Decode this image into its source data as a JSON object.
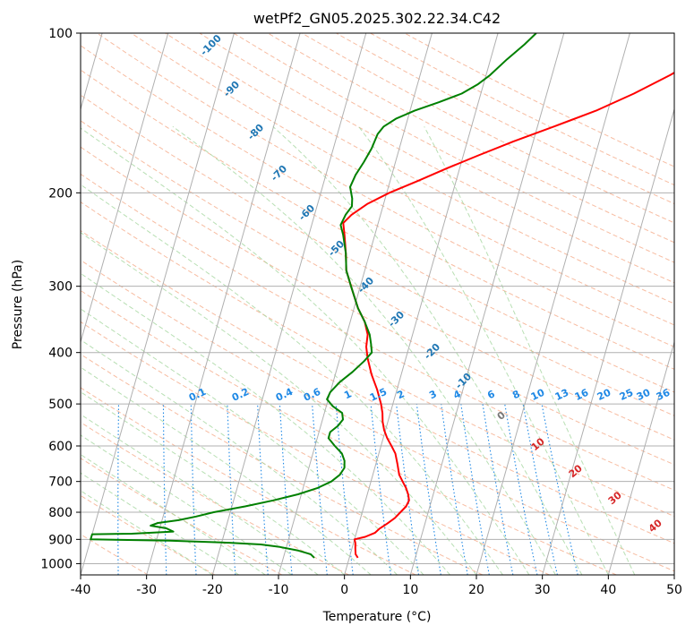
{
  "chart_data": {
    "type": "line",
    "title": "wetPf2_GN05.2025.302.22.34.C42",
    "xlabel": "Temperature (°C)",
    "ylabel": "Pressure (hPa)",
    "xlim": [
      -40,
      50
    ],
    "ylim": [
      1050,
      100
    ],
    "y_scale": "log",
    "grid": true,
    "x_ticks": [
      -40,
      -30,
      -20,
      -10,
      0,
      10,
      20,
      30,
      40,
      50
    ],
    "y_ticks": [
      100,
      200,
      300,
      400,
      500,
      600,
      700,
      800,
      900,
      1000
    ],
    "series": [
      {
        "color": "#ff0000",
        "points": [
          {
            "p": 975,
            "t": 1.3
          },
          {
            "p": 960,
            "t": 0.8
          },
          {
            "p": 935,
            "t": 0.5
          },
          {
            "p": 915,
            "t": 0.3
          },
          {
            "p": 900,
            "t": 0.0
          },
          {
            "p": 890,
            "t": 1.5
          },
          {
            "p": 875,
            "t": 2.8
          },
          {
            "p": 860,
            "t": 3.3
          },
          {
            "p": 840,
            "t": 4.3
          },
          {
            "p": 820,
            "t": 5.2
          },
          {
            "p": 800,
            "t": 5.8
          },
          {
            "p": 780,
            "t": 6.4
          },
          {
            "p": 760,
            "t": 6.6
          },
          {
            "p": 740,
            "t": 6.2
          },
          {
            "p": 720,
            "t": 5.6
          },
          {
            "p": 700,
            "t": 4.8
          },
          {
            "p": 680,
            "t": 4.0
          },
          {
            "p": 650,
            "t": 3.3
          },
          {
            "p": 620,
            "t": 2.5
          },
          {
            "p": 600,
            "t": 1.6
          },
          {
            "p": 580,
            "t": 0.6
          },
          {
            "p": 560,
            "t": -0.2
          },
          {
            "p": 540,
            "t": -0.8
          },
          {
            "p": 520,
            "t": -1.2
          },
          {
            "p": 500,
            "t": -1.8
          },
          {
            "p": 470,
            "t": -3.0
          },
          {
            "p": 440,
            "t": -4.5
          },
          {
            "p": 410,
            "t": -5.8
          },
          {
            "p": 390,
            "t": -6.5
          },
          {
            "p": 370,
            "t": -6.8
          },
          {
            "p": 350,
            "t": -7.8
          },
          {
            "p": 330,
            "t": -9.4
          },
          {
            "p": 300,
            "t": -11.4
          },
          {
            "p": 280,
            "t": -12.8
          },
          {
            "p": 260,
            "t": -13.6
          },
          {
            "p": 240,
            "t": -14.6
          },
          {
            "p": 228,
            "t": -15.3
          },
          {
            "p": 220,
            "t": -14.4
          },
          {
            "p": 210,
            "t": -12.5
          },
          {
            "p": 200,
            "t": -9.6
          },
          {
            "p": 190,
            "t": -5.8
          },
          {
            "p": 180,
            "t": -2.0
          },
          {
            "p": 170,
            "t": 2.3
          },
          {
            "p": 160,
            "t": 7.0
          },
          {
            "p": 150,
            "t": 12.5
          },
          {
            "p": 140,
            "t": 18.2
          },
          {
            "p": 130,
            "t": 23.2
          },
          {
            "p": 120,
            "t": 27.9
          },
          {
            "p": 110,
            "t": 32.3
          },
          {
            "p": 100,
            "t": 33.4
          }
        ]
      },
      {
        "color": "#008000",
        "points": [
          {
            "p": 975,
            "t": -5.3
          },
          {
            "p": 960,
            "t": -6.0
          },
          {
            "p": 945,
            "t": -8.0
          },
          {
            "p": 930,
            "t": -11.0
          },
          {
            "p": 920,
            "t": -14.0
          },
          {
            "p": 912,
            "t": -20.0
          },
          {
            "p": 905,
            "t": -28.0
          },
          {
            "p": 900,
            "t": -40.0
          },
          {
            "p": 880,
            "t": -40.0
          },
          {
            "p": 878,
            "t": -34.0
          },
          {
            "p": 870,
            "t": -27.8
          },
          {
            "p": 858,
            "t": -29.0
          },
          {
            "p": 848,
            "t": -31.5
          },
          {
            "p": 838,
            "t": -30.5
          },
          {
            "p": 828,
            "t": -27.5
          },
          {
            "p": 815,
            "t": -25.0
          },
          {
            "p": 800,
            "t": -22.5
          },
          {
            "p": 780,
            "t": -18.0
          },
          {
            "p": 760,
            "t": -14.0
          },
          {
            "p": 740,
            "t": -10.5
          },
          {
            "p": 720,
            "t": -7.8
          },
          {
            "p": 700,
            "t": -6.0
          },
          {
            "p": 680,
            "t": -5.0
          },
          {
            "p": 660,
            "t": -4.6
          },
          {
            "p": 640,
            "t": -4.9
          },
          {
            "p": 620,
            "t": -5.6
          },
          {
            "p": 600,
            "t": -7.0
          },
          {
            "p": 580,
            "t": -8.3
          },
          {
            "p": 565,
            "t": -8.3
          },
          {
            "p": 550,
            "t": -7.4
          },
          {
            "p": 535,
            "t": -6.9
          },
          {
            "p": 520,
            "t": -7.3
          },
          {
            "p": 505,
            "t": -9.0
          },
          {
            "p": 490,
            "t": -10.2
          },
          {
            "p": 475,
            "t": -10.0
          },
          {
            "p": 455,
            "t": -9.0
          },
          {
            "p": 435,
            "t": -7.5
          },
          {
            "p": 415,
            "t": -6.2
          },
          {
            "p": 400,
            "t": -5.4
          },
          {
            "p": 385,
            "t": -5.9
          },
          {
            "p": 370,
            "t": -6.5
          },
          {
            "p": 350,
            "t": -7.8
          },
          {
            "p": 330,
            "t": -9.4
          },
          {
            "p": 300,
            "t": -11.4
          },
          {
            "p": 280,
            "t": -12.8
          },
          {
            "p": 260,
            "t": -13.6
          },
          {
            "p": 240,
            "t": -14.8
          },
          {
            "p": 230,
            "t": -15.6
          },
          {
            "p": 220,
            "t": -15.3
          },
          {
            "p": 212,
            "t": -14.7
          },
          {
            "p": 205,
            "t": -15.0
          },
          {
            "p": 195,
            "t": -15.8
          },
          {
            "p": 185,
            "t": -15.5
          },
          {
            "p": 175,
            "t": -14.8
          },
          {
            "p": 165,
            "t": -14.2
          },
          {
            "p": 155,
            "t": -13.9
          },
          {
            "p": 150,
            "t": -13.3
          },
          {
            "p": 145,
            "t": -11.8
          },
          {
            "p": 140,
            "t": -9.3
          },
          {
            "p": 135,
            "t": -6.0
          },
          {
            "p": 130,
            "t": -2.9
          },
          {
            "p": 125,
            "t": -0.9
          },
          {
            "p": 120,
            "t": 0.6
          },
          {
            "p": 112,
            "t": 2.5
          },
          {
            "p": 105,
            "t": 4.5
          },
          {
            "p": 100,
            "t": 5.8
          }
        ]
      }
    ],
    "dry_adiabat_labels": [
      -100,
      -90,
      -80,
      -70,
      -60,
      -50,
      -40,
      -30,
      -20,
      -10
    ],
    "mixing_ratio_labels": [
      "0.1",
      "0.2",
      "0.4",
      "0.6",
      "1",
      "1.5",
      "2",
      "3",
      "4",
      "6",
      "8",
      "10",
      "13",
      "16",
      "20",
      "25",
      "30",
      "36"
    ],
    "moist_adiabat_labels": {
      "gray": [
        "0"
      ],
      "red": [
        "10",
        "20",
        "30",
        "40"
      ]
    }
  }
}
